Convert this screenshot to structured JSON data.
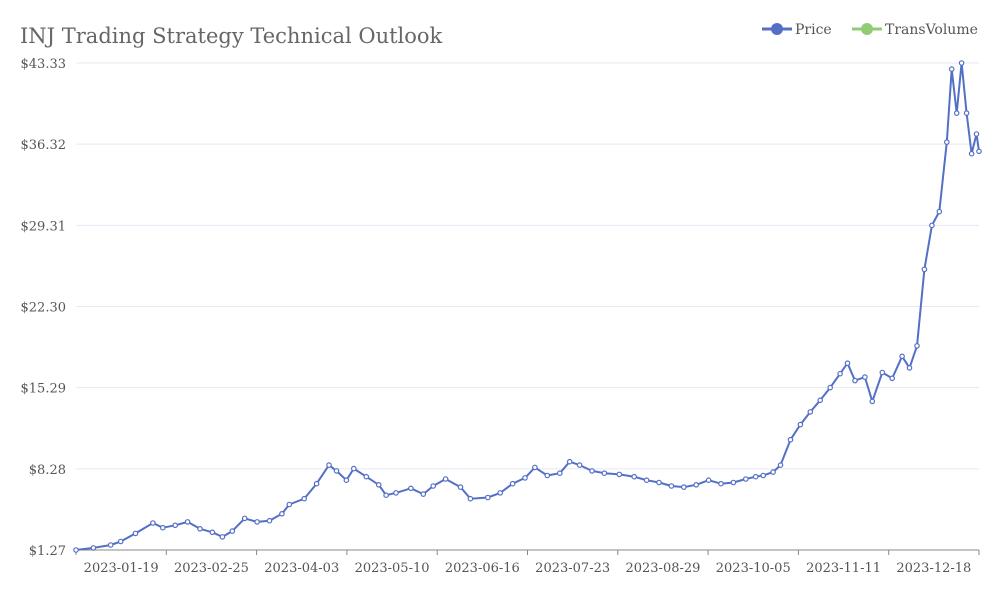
{
  "chart_data": {
    "type": "line",
    "title": "INJ Trading Strategy Technical Outlook",
    "legend": {
      "placement": "top-right",
      "items": [
        {
          "name": "Price",
          "color": "#5470c6"
        },
        {
          "name": "TransVolume",
          "color": "#91cc75"
        }
      ]
    },
    "y_ticks": [
      "$1.27",
      "$8.28",
      "$15.29",
      "$22.30",
      "$29.31",
      "$36.32",
      "$43.33"
    ],
    "y_tick_values": [
      1.27,
      8.28,
      15.29,
      22.3,
      29.31,
      36.32,
      43.33
    ],
    "ylim": [
      1.27,
      43.33
    ],
    "x_ticks": [
      "2023-01-19",
      "2023-02-25",
      "2023-04-03",
      "2023-05-10",
      "2023-06-16",
      "2023-07-23",
      "2023-08-29",
      "2023-10-05",
      "2023-11-11",
      "2023-12-18"
    ],
    "x_range": [
      "2023-01-01",
      "2023-12-31"
    ],
    "grid": true,
    "series": [
      {
        "name": "Price",
        "color": "#5470c6",
        "points": [
          [
            "2023-01-01",
            1.27
          ],
          [
            "2023-01-08",
            1.45
          ],
          [
            "2023-01-15",
            1.7
          ],
          [
            "2023-01-19",
            2.0
          ],
          [
            "2023-01-25",
            2.7
          ],
          [
            "2023-02-01",
            3.6
          ],
          [
            "2023-02-05",
            3.2
          ],
          [
            "2023-02-10",
            3.4
          ],
          [
            "2023-02-15",
            3.7
          ],
          [
            "2023-02-20",
            3.1
          ],
          [
            "2023-02-25",
            2.8
          ],
          [
            "2023-03-01",
            2.4
          ],
          [
            "2023-03-05",
            2.9
          ],
          [
            "2023-03-10",
            4.0
          ],
          [
            "2023-03-15",
            3.7
          ],
          [
            "2023-03-20",
            3.8
          ],
          [
            "2023-03-25",
            4.4
          ],
          [
            "2023-03-28",
            5.2
          ],
          [
            "2023-04-03",
            5.7
          ],
          [
            "2023-04-08",
            7.0
          ],
          [
            "2023-04-13",
            8.6
          ],
          [
            "2023-04-16",
            8.1
          ],
          [
            "2023-04-20",
            7.3
          ],
          [
            "2023-04-23",
            8.3
          ],
          [
            "2023-04-28",
            7.6
          ],
          [
            "2023-05-03",
            6.9
          ],
          [
            "2023-05-06",
            6.0
          ],
          [
            "2023-05-10",
            6.2
          ],
          [
            "2023-05-16",
            6.6
          ],
          [
            "2023-05-21",
            6.1
          ],
          [
            "2023-05-25",
            6.8
          ],
          [
            "2023-05-30",
            7.4
          ],
          [
            "2023-06-05",
            6.7
          ],
          [
            "2023-06-09",
            5.7
          ],
          [
            "2023-06-16",
            5.8
          ],
          [
            "2023-06-21",
            6.2
          ],
          [
            "2023-06-26",
            7.0
          ],
          [
            "2023-07-01",
            7.5
          ],
          [
            "2023-07-05",
            8.4
          ],
          [
            "2023-07-10",
            7.7
          ],
          [
            "2023-07-15",
            7.9
          ],
          [
            "2023-07-19",
            8.9
          ],
          [
            "2023-07-23",
            8.6
          ],
          [
            "2023-07-28",
            8.1
          ],
          [
            "2023-08-02",
            7.9
          ],
          [
            "2023-08-08",
            7.8
          ],
          [
            "2023-08-14",
            7.6
          ],
          [
            "2023-08-19",
            7.3
          ],
          [
            "2023-08-24",
            7.1
          ],
          [
            "2023-08-29",
            6.8
          ],
          [
            "2023-09-03",
            6.7
          ],
          [
            "2023-09-08",
            6.9
          ],
          [
            "2023-09-13",
            7.3
          ],
          [
            "2023-09-18",
            7.0
          ],
          [
            "2023-09-23",
            7.1
          ],
          [
            "2023-09-28",
            7.4
          ],
          [
            "2023-10-02",
            7.6
          ],
          [
            "2023-10-05",
            7.7
          ],
          [
            "2023-10-09",
            8.0
          ],
          [
            "2023-10-12",
            8.6
          ],
          [
            "2023-10-16",
            10.8
          ],
          [
            "2023-10-20",
            12.1
          ],
          [
            "2023-10-24",
            13.2
          ],
          [
            "2023-10-28",
            14.2
          ],
          [
            "2023-11-01",
            15.3
          ],
          [
            "2023-11-05",
            16.5
          ],
          [
            "2023-11-08",
            17.4
          ],
          [
            "2023-11-11",
            15.9
          ],
          [
            "2023-11-15",
            16.2
          ],
          [
            "2023-11-18",
            14.1
          ],
          [
            "2023-11-22",
            16.6
          ],
          [
            "2023-11-26",
            16.1
          ],
          [
            "2023-11-30",
            18.0
          ],
          [
            "2023-12-03",
            17.0
          ],
          [
            "2023-12-06",
            18.9
          ],
          [
            "2023-12-09",
            25.5
          ],
          [
            "2023-12-12",
            29.3
          ],
          [
            "2023-12-15",
            30.5
          ],
          [
            "2023-12-18",
            36.5
          ],
          [
            "2023-12-20",
            42.8
          ],
          [
            "2023-12-22",
            39.0
          ],
          [
            "2023-12-24",
            43.33
          ],
          [
            "2023-12-26",
            39.0
          ],
          [
            "2023-12-28",
            35.5
          ],
          [
            "2023-12-30",
            37.2
          ],
          [
            "2023-12-31",
            35.7
          ]
        ]
      }
    ]
  }
}
